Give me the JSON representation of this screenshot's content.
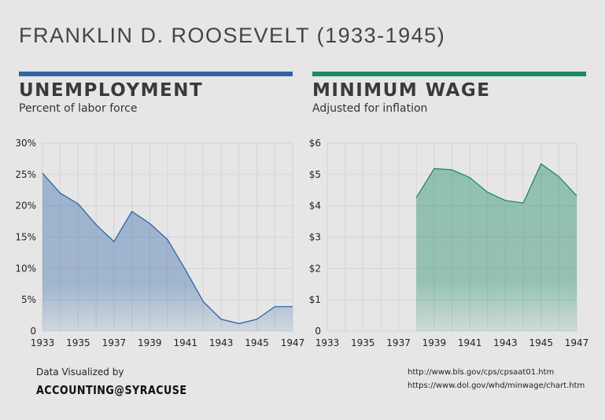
{
  "title": "FRANKLIN D. ROOSEVELT (1933-1945)",
  "footer": {
    "credit": "Data Visualized by",
    "brand": "ACCOUNTING@SYRACUSE",
    "sources": [
      "http://www.bls.gov/cps/cpsaat01.htm",
      "https://www.dol.gov/whd/minwage/chart.htm"
    ]
  },
  "chart_data": [
    {
      "type": "area",
      "title": "UNEMPLOYMENT",
      "subtitle": "Percent of labor force",
      "color": "#2f65a7",
      "x": [
        1933,
        1934,
        1935,
        1936,
        1937,
        1938,
        1939,
        1940,
        1941,
        1942,
        1943,
        1944,
        1945,
        1946,
        1947
      ],
      "values": [
        25.2,
        22.0,
        20.3,
        17.0,
        14.3,
        19.1,
        17.2,
        14.6,
        9.8,
        4.7,
        1.9,
        1.2,
        1.9,
        3.9,
        3.9
      ],
      "xlim": [
        1933,
        1947
      ],
      "ylim": [
        0,
        30
      ],
      "yticks": [
        0,
        5,
        10,
        15,
        20,
        25,
        30
      ],
      "ytick_labels": [
        "0",
        "5%",
        "10%",
        "15%",
        "20%",
        "25%",
        "30%"
      ],
      "xtick_labels": [
        "1933",
        "1935",
        "1937",
        "1939",
        "1941",
        "1943",
        "1945",
        "1947"
      ],
      "grid": true
    },
    {
      "type": "area",
      "title": "MINIMUM WAGE",
      "subtitle": "Adjusted for inflation",
      "color": "#1b8a66",
      "x": [
        1938,
        1939,
        1940,
        1941,
        1942,
        1943,
        1944,
        1945,
        1946,
        1947
      ],
      "values": [
        4.26,
        5.19,
        5.15,
        4.9,
        4.43,
        4.17,
        4.09,
        5.34,
        4.93,
        4.32
      ],
      "xlim": [
        1933,
        1947
      ],
      "ylim": [
        0,
        6
      ],
      "yticks": [
        0,
        1,
        2,
        3,
        4,
        5,
        6
      ],
      "ytick_labels": [
        "0",
        "$1",
        "$2",
        "$3",
        "$4",
        "$5",
        "$6"
      ],
      "xtick_labels": [
        "1933",
        "1935",
        "1937",
        "1939",
        "1941",
        "1943",
        "1945",
        "1947"
      ],
      "grid": true
    }
  ]
}
